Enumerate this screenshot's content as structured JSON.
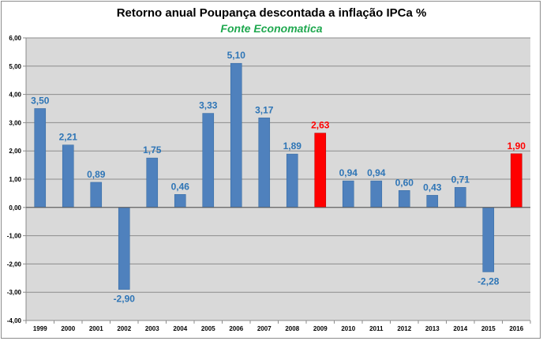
{
  "chart_data": {
    "type": "bar",
    "title": "Retorno anual Poupança descontada a inflação IPCa %",
    "subtitle": "Fonte Economatica",
    "xlabel": "",
    "ylabel": "",
    "categories": [
      "1999",
      "2000",
      "2001",
      "2002",
      "2003",
      "2004",
      "2005",
      "2006",
      "2007",
      "2008",
      "2009",
      "2010",
      "2011",
      "2012",
      "2013",
      "2014",
      "2015",
      "2016"
    ],
    "values": [
      3.5,
      2.21,
      0.89,
      -2.9,
      1.75,
      0.46,
      3.33,
      5.1,
      3.17,
      1.89,
      2.63,
      0.94,
      0.94,
      0.6,
      0.43,
      0.71,
      -2.28,
      1.9
    ],
    "data_labels": [
      "3,50",
      "2,21",
      "0,89",
      "-2,90",
      "1,75",
      "0,46",
      "3,33",
      "5,10",
      "3,17",
      "1,89",
      "2,63",
      "0,94",
      "0,94",
      "0,60",
      "0,43",
      "0,71",
      "-2,28",
      "1,90"
    ],
    "highlight_categories": [
      "2009",
      "2016"
    ],
    "ylim": [
      -4,
      6
    ],
    "yticks": [
      -4,
      -3,
      -2,
      -1,
      0,
      1,
      2,
      3,
      4,
      5,
      6
    ],
    "ytick_labels": [
      "-4,00",
      "-3,00",
      "-2,00",
      "-1,00",
      "0,00",
      "1,00",
      "2,00",
      "3,00",
      "4,00",
      "5,00",
      "6,00"
    ],
    "grid": true,
    "legend": "none",
    "colors": {
      "bar": "#4f81bd",
      "bar_highlight": "#ff0000",
      "label": "#2e75b6",
      "label_highlight": "#ff0000",
      "plot_background": "#d9d9d9",
      "subtitle": "#1fa84f"
    }
  }
}
